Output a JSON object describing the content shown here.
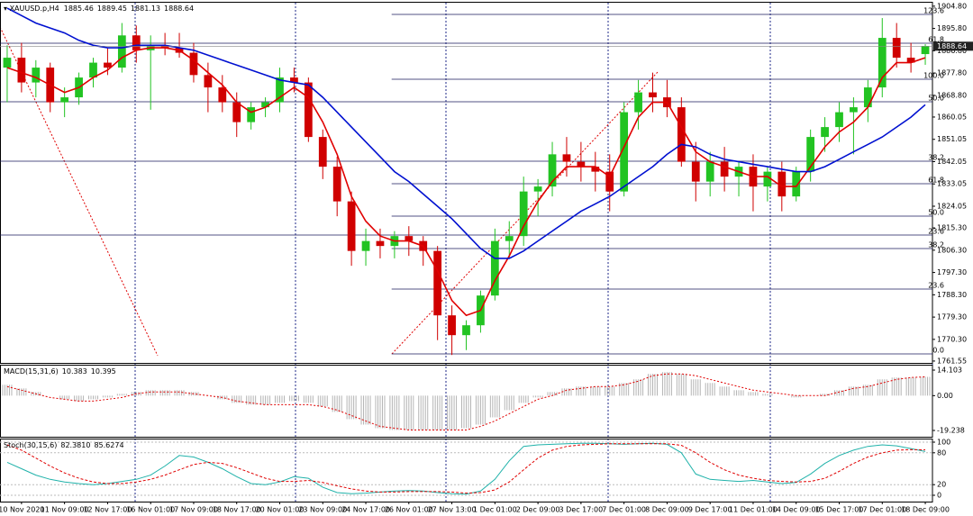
{
  "chart_data": [
    {
      "type": "candlestick",
      "title": "XAUUSD.p,H4",
      "up_color": "#22c322",
      "down_color": "#d00000",
      "xlim": [
        -0.5,
        64.5
      ],
      "xticks": [
        {
          "value": 1,
          "label": "10 Nov 2020"
        },
        {
          "value": 4,
          "label": "11 Nov 09:00"
        },
        {
          "value": 7,
          "label": "12 Nov 17:00"
        },
        {
          "value": 10,
          "label": "16 Nov 01:00"
        },
        {
          "value": 13,
          "label": "17 Nov 09:00"
        },
        {
          "value": 16,
          "label": "18 Nov 17:00"
        },
        {
          "value": 19,
          "label": "20 Nov 01:00"
        },
        {
          "value": 22,
          "label": "23 Nov 09:00"
        },
        {
          "value": 25,
          "label": "24 Nov 17:00"
        },
        {
          "value": 28,
          "label": "26 Nov 01:00"
        },
        {
          "value": 31,
          "label": "27 Nov 13:00"
        },
        {
          "value": 34,
          "label": "1 Dec 01:00"
        },
        {
          "value": 37,
          "label": "2 Dec 09:00"
        },
        {
          "value": 40,
          "label": "3 Dec 17:00"
        },
        {
          "value": 43,
          "label": "7 Dec 01:00"
        },
        {
          "value": 46,
          "label": "8 Dec 09:00"
        },
        {
          "value": 49,
          "label": "9 Dec 17:00"
        },
        {
          "value": 52,
          "label": "11 Dec 01:00"
        },
        {
          "value": 55,
          "label": "14 Dec 09:00"
        },
        {
          "value": 58,
          "label": "15 Dec 17:00"
        },
        {
          "value": 61,
          "label": "17 Dec 01:00"
        },
        {
          "value": 64,
          "label": "18 Dec 09:00"
        }
      ],
      "ylim": [
        1760.8,
        1906.2
      ],
      "yticks": [
        {
          "value": 1904.8,
          "label": "1904.80"
        },
        {
          "value": 1895.8,
          "label": "1895.80"
        },
        {
          "value": 1886.8,
          "label": "1886.80"
        },
        {
          "value": 1877.8,
          "label": "1877.80"
        },
        {
          "value": 1868.8,
          "label": "1868.80"
        },
        1860.05,
        1851.05,
        1842.05,
        1833.05,
        1824.05,
        {
          "value": 1815.3,
          "label": "1815.30"
        },
        {
          "value": 1806.3,
          "label": "1806.30"
        },
        {
          "value": 1797.3,
          "label": "1797.30"
        },
        {
          "value": 1788.3,
          "label": "1788.30"
        },
        {
          "value": 1779.3,
          "label": "1779.30"
        },
        {
          "value": 1770.3,
          "label": "1770.30"
        },
        1761.55
      ],
      "ohlc": [
        [
          1880,
          1889,
          1866,
          1884
        ],
        [
          1884,
          1890,
          1870,
          1874
        ],
        [
          1874,
          1883,
          1868,
          1880
        ],
        [
          1880,
          1882,
          1862,
          1866
        ],
        [
          1866,
          1872,
          1860,
          1868
        ],
        [
          1868,
          1878,
          1865,
          1876
        ],
        [
          1876,
          1884,
          1872,
          1882
        ],
        [
          1882,
          1888,
          1877,
          1880
        ],
        [
          1880,
          1898,
          1878,
          1893
        ],
        [
          1893,
          1897,
          1882,
          1887
        ],
        [
          1887,
          1893,
          1863,
          1889
        ],
        [
          1889,
          1894,
          1885,
          1888
        ],
        [
          1888,
          1894,
          1884,
          1886
        ],
        [
          1886,
          1890,
          1874,
          1877
        ],
        [
          1877,
          1882,
          1862,
          1872
        ],
        [
          1872,
          1877,
          1862,
          1866
        ],
        [
          1866,
          1870,
          1852,
          1858
        ],
        [
          1858,
          1866,
          1855,
          1864
        ],
        [
          1864,
          1868,
          1860,
          1866
        ],
        [
          1866,
          1880,
          1862,
          1876
        ],
        [
          1876,
          1880,
          1870,
          1874
        ],
        [
          1874,
          1876,
          1850,
          1852
        ],
        [
          1852,
          1855,
          1835,
          1840
        ],
        [
          1840,
          1844,
          1820,
          1826
        ],
        [
          1826,
          1830,
          1800,
          1806
        ],
        [
          1806,
          1815,
          1800,
          1810
        ],
        [
          1810,
          1815,
          1803,
          1808
        ],
        [
          1808,
          1814,
          1803,
          1812
        ],
        [
          1812,
          1816,
          1804,
          1810
        ],
        [
          1810,
          1812,
          1800,
          1806
        ],
        [
          1806,
          1808,
          1770,
          1780
        ],
        [
          1780,
          1784,
          1764,
          1772
        ],
        [
          1772,
          1778,
          1766,
          1776
        ],
        [
          1776,
          1790,
          1773,
          1788
        ],
        [
          1788,
          1815,
          1786,
          1810
        ],
        [
          1810,
          1818,
          1803,
          1812
        ],
        [
          1812,
          1836,
          1808,
          1830
        ],
        [
          1830,
          1835,
          1820,
          1832
        ],
        [
          1832,
          1850,
          1828,
          1845
        ],
        [
          1845,
          1852,
          1836,
          1842
        ],
        [
          1842,
          1850,
          1834,
          1840
        ],
        [
          1840,
          1846,
          1830,
          1838
        ],
        [
          1838,
          1845,
          1822,
          1830
        ],
        [
          1830,
          1866,
          1828,
          1862
        ],
        [
          1862,
          1875,
          1855,
          1870
        ],
        [
          1870,
          1878,
          1862,
          1868
        ],
        [
          1868,
          1875,
          1860,
          1864
        ],
        [
          1864,
          1868,
          1840,
          1842
        ],
        [
          1842,
          1850,
          1826,
          1834
        ],
        [
          1834,
          1846,
          1828,
          1842
        ],
        [
          1842,
          1848,
          1830,
          1836
        ],
        [
          1836,
          1842,
          1828,
          1840
        ],
        [
          1840,
          1845,
          1822,
          1832
        ],
        [
          1832,
          1840,
          1826,
          1838
        ],
        [
          1838,
          1842,
          1822,
          1828
        ],
        [
          1828,
          1840,
          1826,
          1838
        ],
        [
          1838,
          1855,
          1834,
          1852
        ],
        [
          1852,
          1860,
          1846,
          1856
        ],
        [
          1856,
          1866,
          1850,
          1862
        ],
        [
          1862,
          1868,
          1845,
          1864
        ],
        [
          1864,
          1875,
          1858,
          1872
        ],
        [
          1872,
          1900,
          1868,
          1892
        ],
        [
          1892,
          1898,
          1880,
          1884
        ],
        [
          1884,
          1890,
          1878,
          1882
        ],
        [
          1885.46,
          1889.45,
          1881.13,
          1888.64
        ]
      ],
      "overlays": [
        {
          "color": "#e00000",
          "values": [
            1880,
            1878,
            1876,
            1873,
            1870,
            1872,
            1876,
            1879,
            1884,
            1887,
            1888,
            1888,
            1887,
            1883,
            1878,
            1873,
            1866,
            1862,
            1864,
            1868,
            1872,
            1868,
            1858,
            1845,
            1828,
            1818,
            1812,
            1810,
            1810,
            1808,
            1798,
            1786,
            1780,
            1782,
            1794,
            1804,
            1816,
            1826,
            1834,
            1840,
            1840,
            1840,
            1836,
            1848,
            1860,
            1866,
            1866,
            1856,
            1846,
            1842,
            1840,
            1838,
            1836,
            1836,
            1832,
            1832,
            1840,
            1848,
            1854,
            1858,
            1864,
            1876,
            1882,
            1882,
            1884
          ]
        },
        {
          "color": "#0010d0",
          "values": [
            1904,
            1901,
            1898,
            1896,
            1894,
            1891,
            1889,
            1888,
            1888,
            1889,
            1889,
            1889,
            1888,
            1887,
            1885,
            1883,
            1881,
            1879,
            1877,
            1875,
            1874,
            1873,
            1868,
            1862,
            1856,
            1850,
            1844,
            1838,
            1834,
            1829,
            1824,
            1819,
            1813,
            1807,
            1803,
            1803,
            1806,
            1810,
            1814,
            1818,
            1822,
            1825,
            1828,
            1832,
            1836,
            1840,
            1845,
            1849,
            1848,
            1845,
            1843,
            1842,
            1841,
            1840,
            1839,
            1838,
            1838,
            1840,
            1843,
            1846,
            1849,
            1852,
            1856,
            1860,
            1865
          ]
        }
      ],
      "levels": [
        {
          "label": "123.6",
          "price": 1901.47,
          "from": 26.8
        },
        {
          "label": "61.8",
          "price": 1889.84,
          "from": -0.5
        },
        {
          "label": "100.0",
          "price": 1875.3,
          "from": 26.8
        },
        {
          "label": "50.0",
          "price": 1866.21,
          "from": -0.5
        },
        {
          "label": "38.2",
          "price": 1842.22,
          "from": -0.5
        },
        {
          "label": "61.8",
          "price": 1833.14,
          "from": 26.8
        },
        {
          "label": "50.0",
          "price": 1820.05,
          "from": 26.8
        },
        {
          "label": "23.6",
          "price": 1812.42,
          "from": -0.5
        },
        {
          "label": "38.2",
          "price": 1806.96,
          "from": 26.8
        },
        {
          "label": "23.6",
          "price": 1790.6,
          "from": 26.8
        },
        {
          "label": "0.0",
          "price": 1764.43,
          "from": 26.8
        }
      ]
    },
    {
      "type": "macd",
      "title": "MACD(15,31,6)",
      "ylim": [
        -22.72,
        17.09
      ],
      "yticks": [
        14.103,
        {
          "value": 0,
          "label": "0.00"
        },
        -19.238
      ],
      "series": [
        {
          "color": "#b4b4b4",
          "values": [
            6,
            4,
            2,
            0,
            -2,
            -3,
            -2,
            -1,
            1,
            2,
            3,
            3,
            3,
            2,
            0,
            -2,
            -4,
            -5,
            -5,
            -4,
            -3,
            -4,
            -6,
            -9,
            -13,
            -16,
            -18,
            -19,
            -19,
            -19,
            -19,
            -19,
            -18,
            -16,
            -12,
            -8,
            -4,
            -1,
            2,
            4,
            5,
            5,
            5,
            7,
            9,
            12,
            13,
            12,
            9,
            7,
            5,
            3,
            2,
            1,
            0,
            -1,
            0,
            1,
            3,
            5,
            6,
            9,
            10,
            10,
            10.383
          ]
        },
        {
          "color": "#e00000",
          "values": [
            5,
            3,
            1,
            -1,
            -2,
            -3,
            -3,
            -2,
            -1,
            1,
            2,
            2,
            2,
            1,
            0,
            -1,
            -3,
            -4,
            -5,
            -5,
            -5,
            -5,
            -6,
            -8,
            -11,
            -14,
            -17,
            -18,
            -19,
            -19,
            -19,
            -19,
            -19,
            -17,
            -14,
            -10,
            -6,
            -2,
            0,
            3,
            4,
            5,
            5,
            6,
            8,
            11,
            12,
            12,
            11,
            9,
            7,
            5,
            3,
            2,
            1,
            0,
            0,
            0,
            2,
            4,
            5,
            7,
            9,
            10,
            10.395
          ]
        }
      ]
    },
    {
      "type": "stochastic",
      "title": "Stoch(30,15,6)",
      "ylim": [
        -11.9,
        106.8
      ],
      "yticks": [
        100,
        80,
        20,
        0
      ],
      "grid": true,
      "readout": [
        {
          "value": 82.381,
          "label": "82.3810"
        },
        {
          "value": 85.6274,
          "label": "85.6274"
        }
      ],
      "series": [
        {
          "color": "#20b2aa",
          "values": [
            62,
            50,
            38,
            30,
            25,
            22,
            20,
            22,
            26,
            30,
            38,
            55,
            75,
            72,
            62,
            50,
            35,
            22,
            20,
            25,
            35,
            32,
            15,
            5,
            3,
            4,
            6,
            8,
            9,
            8,
            5,
            3,
            2,
            8,
            30,
            65,
            92,
            95,
            96,
            97,
            98,
            98,
            97,
            96,
            97,
            98,
            96,
            80,
            40,
            30,
            28,
            26,
            28,
            25,
            22,
            24,
            40,
            60,
            75,
            85,
            92,
            95,
            93,
            88,
            82.381
          ]
        },
        {
          "color": "#e00000",
          "values": [
            95,
            85,
            70,
            55,
            42,
            32,
            25,
            22,
            22,
            25,
            30,
            38,
            48,
            58,
            62,
            60,
            52,
            42,
            32,
            26,
            26,
            28,
            24,
            18,
            12,
            8,
            6,
            6,
            7,
            7,
            7,
            6,
            4,
            5,
            10,
            25,
            48,
            70,
            85,
            92,
            95,
            96,
            97,
            97,
            97,
            97,
            97,
            94,
            80,
            62,
            48,
            38,
            32,
            28,
            26,
            25,
            26,
            32,
            45,
            60,
            72,
            80,
            85,
            86,
            85.6274
          ]
        }
      ]
    }
  ]
}
